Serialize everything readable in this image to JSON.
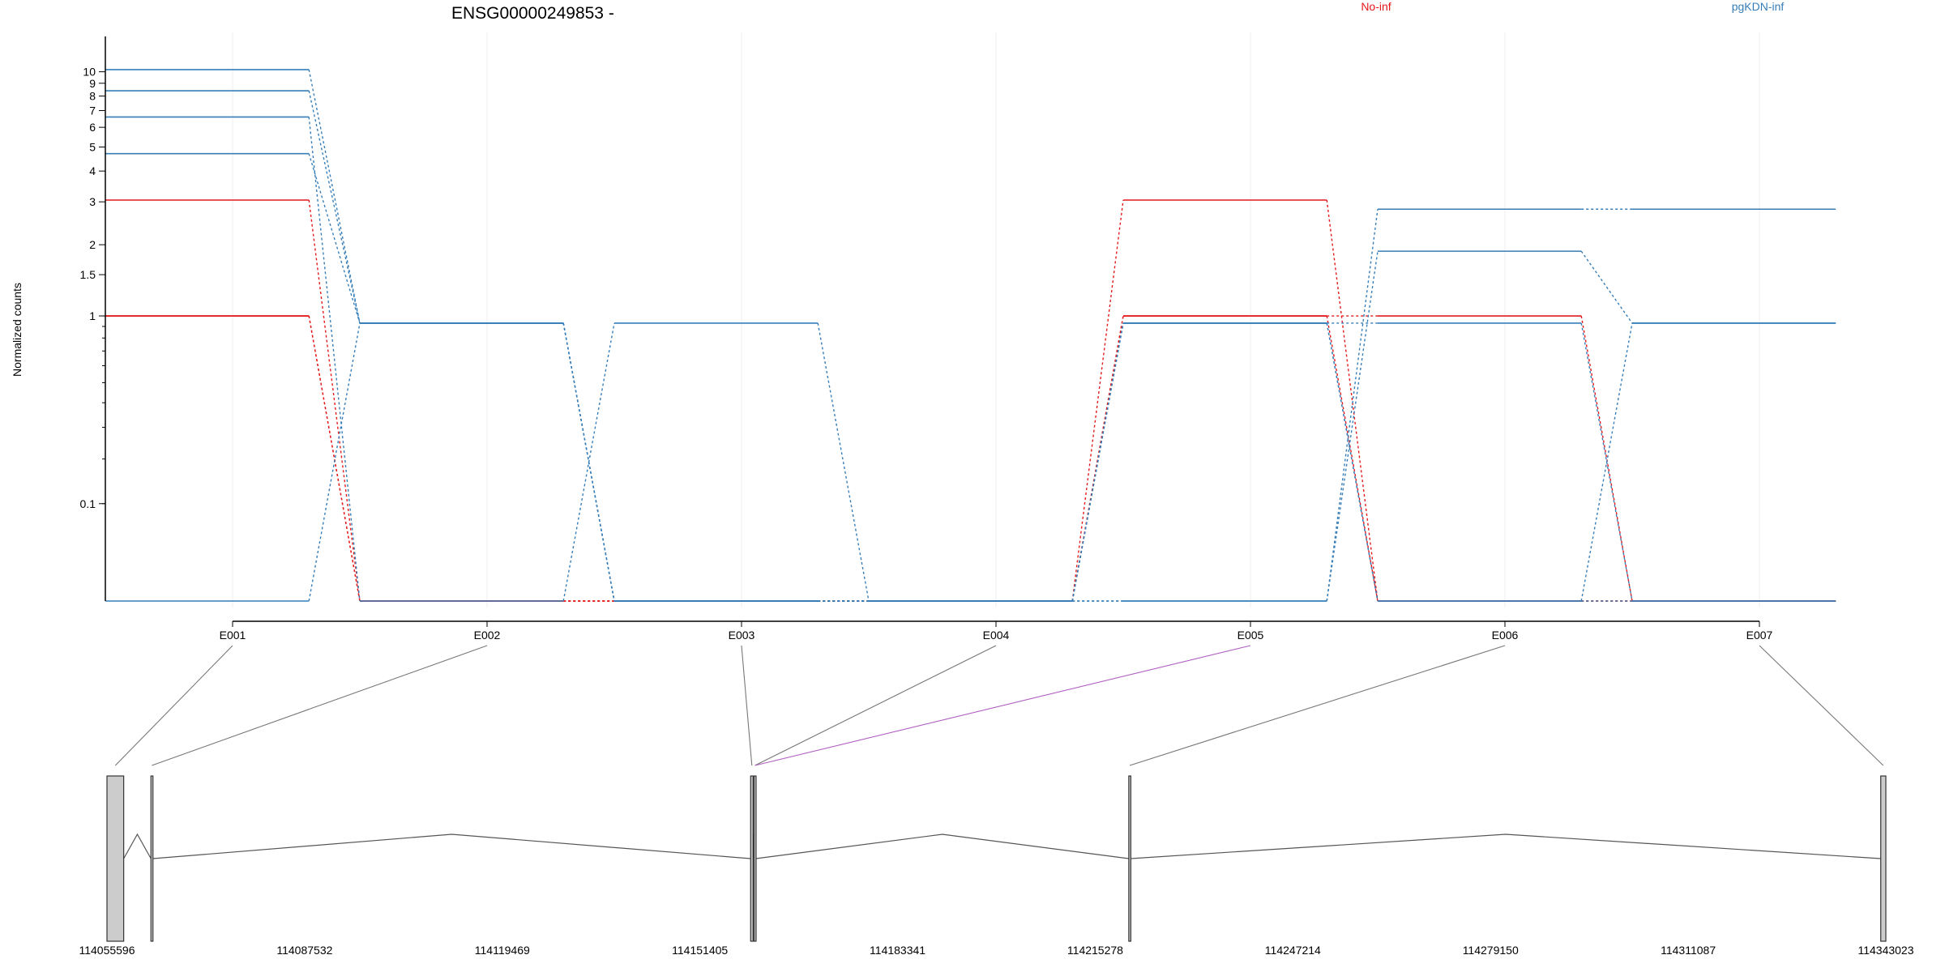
{
  "chart_data": {
    "type": "line",
    "title": "ENSG00000249853 -",
    "ylabel": "Normalized counts",
    "yscale": "log1p",
    "grid": true,
    "legend_placement": "top",
    "categories": [
      "E001",
      "E002",
      "E003",
      "E004",
      "E005",
      "E006",
      "E007"
    ],
    "y_ticks": [
      "0.1",
      "1",
      "1.5",
      "2",
      "3",
      "4",
      "5",
      "6",
      "7",
      "8",
      "9",
      "10"
    ],
    "groups": [
      {
        "name": "No-inf",
        "color": "#e41a1c"
      },
      {
        "name": "pgKDN-inf",
        "color": "#377eb8"
      }
    ],
    "series": [
      {
        "group": "No-inf",
        "values": [
          3.05,
          0,
          0,
          0,
          3.05,
          0,
          0
        ]
      },
      {
        "group": "No-inf",
        "values": [
          1.0,
          0,
          0,
          0,
          1.0,
          1.0,
          0
        ]
      },
      {
        "group": "No-inf",
        "values": [
          1.0,
          0,
          0,
          0,
          1.0,
          0,
          0
        ]
      },
      {
        "group": "pgKDN-inf",
        "values": [
          10.2,
          0.93,
          0,
          0,
          0,
          2.8,
          2.8
        ]
      },
      {
        "group": "pgKDN-inf",
        "values": [
          8.4,
          0.93,
          0,
          0,
          0,
          1.88,
          0.93
        ]
      },
      {
        "group": "pgKDN-inf",
        "values": [
          6.6,
          0,
          0.93,
          0,
          0.93,
          0.93,
          0
        ]
      },
      {
        "group": "pgKDN-inf",
        "values": [
          4.7,
          0.93,
          0,
          0,
          0.93,
          0,
          0
        ]
      },
      {
        "group": "pgKDN-inf",
        "values": [
          0,
          0.93,
          0,
          0,
          0.93,
          0,
          0.93
        ]
      }
    ],
    "gene_model": {
      "coordinate_labels": [
        "114055596",
        "114087532",
        "114119469",
        "114151405",
        "114183341",
        "114215278",
        "114247214",
        "114279150",
        "114311087",
        "114343023"
      ],
      "start": 114055596,
      "end": 114343023,
      "exons": [
        {
          "id": "E001",
          "start": 114055596,
          "end": 114058300
        },
        {
          "id": "E002",
          "start": 114062700,
          "end": 114063000
        },
        {
          "id": "E003",
          "start": 114159600,
          "end": 114160000
        },
        {
          "id": "E004",
          "start": 114160150,
          "end": 114160450
        },
        {
          "id": "E005",
          "start": 114160150,
          "end": 114160450,
          "highlight": true
        },
        {
          "id": "E006",
          "start": 114220700,
          "end": 114221000
        },
        {
          "id": "E007",
          "start": 114342200,
          "end": 114343023
        }
      ],
      "highlight_color": "#b05fc0"
    }
  }
}
